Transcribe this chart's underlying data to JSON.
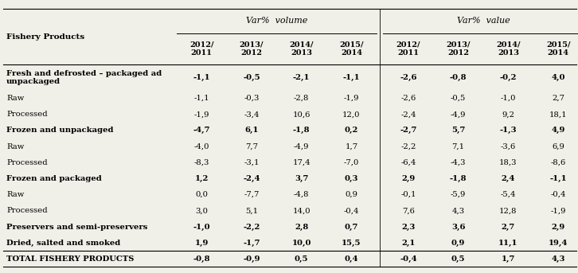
{
  "bg_color": "#f0efe8",
  "vol_header": "Var%  volume",
  "val_header": "Var%  value",
  "fishery_products_label": "Fishery Products",
  "sub_headers": [
    "2012/\n2011",
    "2013/\n2012",
    "2014/\n2013",
    "2015/\n2014",
    "2012/\n2011",
    "2013/\n2012",
    "2014/\n2013",
    "2015/\n2014"
  ],
  "rows": [
    {
      "label": "Fresh and defrosted – packaged ad\nunpackaged",
      "bold": true,
      "values": [
        "-1,1",
        "-0,5",
        "-2,1",
        "-1,1",
        "-2,6",
        "-0,8",
        "-0,2",
        "4,0"
      ]
    },
    {
      "label": "Raw",
      "bold": false,
      "values": [
        "-1,1",
        "-0,3",
        "-2,8",
        "-1,9",
        "-2,6",
        "-0,5",
        "-1,0",
        "2,7"
      ]
    },
    {
      "label": "Processed",
      "bold": false,
      "values": [
        "-1,9",
        "-3,4",
        "10,6",
        "12,0",
        "-2,4",
        "-4,9",
        "9,2",
        "18,1"
      ]
    },
    {
      "label": "Frozen and unpackaged",
      "bold": true,
      "values": [
        "-4,7",
        "6,1",
        "-1,8",
        "0,2",
        "-2,7",
        "5,7",
        "-1,3",
        "4,9"
      ]
    },
    {
      "label": "Raw",
      "bold": false,
      "values": [
        "-4,0",
        "7,7",
        "-4,9",
        "1,7",
        "-2,2",
        "7,1",
        "-3,6",
        "6,9"
      ]
    },
    {
      "label": "Processed",
      "bold": false,
      "values": [
        "-8,3",
        "-3,1",
        "17,4",
        "-7,0",
        "-6,4",
        "-4,3",
        "18,3",
        "-8,6"
      ]
    },
    {
      "label": "Frozen and packaged",
      "bold": true,
      "values": [
        "1,2",
        "-2,4",
        "3,7",
        "0,3",
        "2,9",
        "-1,8",
        "2,4",
        "-1,1"
      ]
    },
    {
      "label": "Raw",
      "bold": false,
      "values": [
        "0,0",
        "-7,7",
        "-4,8",
        "0,9",
        "-0,1",
        "-5,9",
        "-5,4",
        "-0,4"
      ]
    },
    {
      "label": "Processed",
      "bold": false,
      "values": [
        "3,0",
        "5,1",
        "14,0",
        "-0,4",
        "7,6",
        "4,3",
        "12,8",
        "-1,9"
      ]
    },
    {
      "label": "Preservers and semi-preservers",
      "bold": true,
      "values": [
        "-1,0",
        "-2,2",
        "2,8",
        "0,7",
        "2,3",
        "3,6",
        "2,7",
        "2,9"
      ]
    },
    {
      "label": "Dried, salted and smoked",
      "bold": true,
      "values": [
        "1,9",
        "-1,7",
        "10,0",
        "15,5",
        "2,1",
        "0,9",
        "11,1",
        "19,4"
      ]
    },
    {
      "label": "TOTAL FISHERY PRODUCTS",
      "bold": true,
      "values": [
        "-0,8",
        "-0,9",
        "0,5",
        "0,4",
        "-0,4",
        "0,5",
        "1,7",
        "4,3"
      ]
    }
  ]
}
